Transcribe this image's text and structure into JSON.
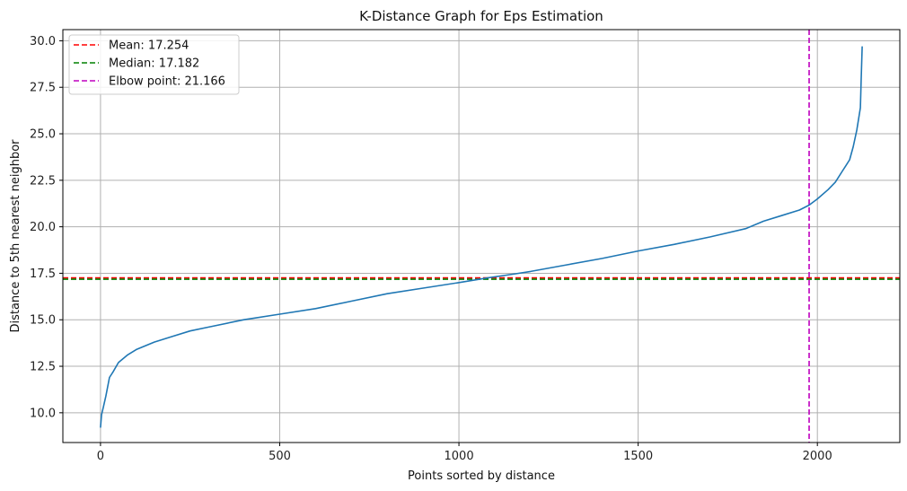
{
  "chart_data": {
    "type": "line",
    "title": "K-Distance Graph for Eps Estimation",
    "xlabel": "Points sorted by distance",
    "ylabel": "Distance to 5th nearest neighbor",
    "xlim": [
      -105,
      2230
    ],
    "ylim": [
      8.4,
      30.6
    ],
    "xticks": [
      0,
      500,
      1000,
      1500,
      2000
    ],
    "yticks": [
      10.0,
      12.5,
      15.0,
      17.5,
      20.0,
      22.5,
      25.0,
      27.5,
      30.0
    ],
    "xtick_labels": [
      "0",
      "500",
      "1000",
      "1500",
      "2000"
    ],
    "ytick_labels": [
      "10.0",
      "12.5",
      "15.0",
      "17.5",
      "20.0",
      "22.5",
      "25.0",
      "27.5",
      "30.0"
    ],
    "grid": true,
    "legend_position": "top-left",
    "series": [
      {
        "color": "#1f77b4",
        "x": [
          0,
          3,
          8,
          15,
          25,
          35,
          50,
          75,
          100,
          150,
          200,
          250,
          300,
          400,
          500,
          600,
          700,
          800,
          900,
          1000,
          1080,
          1150,
          1200,
          1300,
          1400,
          1500,
          1600,
          1700,
          1800,
          1850,
          1900,
          1950,
          1977,
          2000,
          2030,
          2050,
          2070,
          2080,
          2090,
          2100,
          2110,
          2115,
          2120,
          2122,
          2125
        ],
        "y": [
          9.2,
          9.9,
          10.3,
          10.9,
          11.9,
          12.2,
          12.7,
          13.1,
          13.4,
          13.8,
          14.1,
          14.4,
          14.6,
          15.0,
          15.3,
          15.6,
          16.0,
          16.4,
          16.7,
          17.0,
          17.25,
          17.45,
          17.6,
          17.95,
          18.3,
          18.7,
          19.05,
          19.45,
          19.9,
          20.3,
          20.6,
          20.9,
          21.166,
          21.5,
          22.0,
          22.4,
          23.0,
          23.3,
          23.6,
          24.3,
          25.2,
          25.8,
          26.4,
          27.8,
          29.7
        ]
      }
    ],
    "hlines": [
      {
        "label": "Mean: 17.254",
        "value": 17.254,
        "color": "#ff0000"
      },
      {
        "label": "Median: 17.182",
        "value": 17.182,
        "color": "#008000"
      }
    ],
    "vlines": [
      {
        "label": "Elbow point: 21.166",
        "x": 1977,
        "color": "#bf00bf"
      }
    ]
  }
}
